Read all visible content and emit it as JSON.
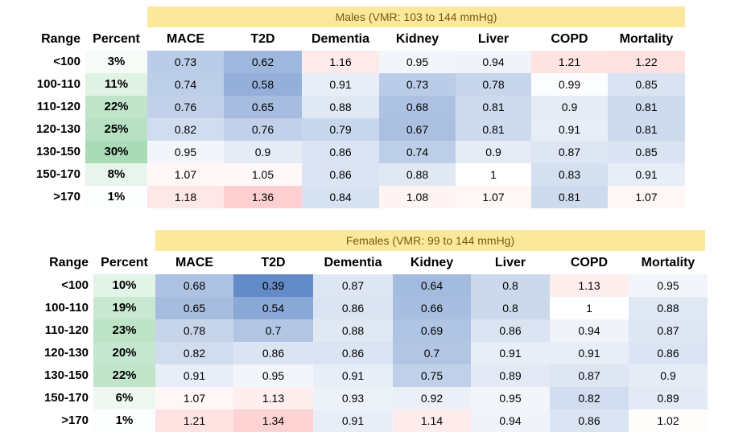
{
  "colors": {
    "banner": "#fbe89a",
    "banner_text": "#7a5a12",
    "low": "#5b85c5",
    "high": "#f8696b",
    "pct": "#63be7b"
  },
  "chart_data": [
    {
      "type": "heatmap",
      "title": "Males (VMR: 103 to 144 mmHg)",
      "range_header": "Range",
      "percent_header": "Percent",
      "columns": [
        "MACE",
        "T2D",
        "Dementia",
        "Kidney",
        "Liver",
        "COPD",
        "Mortality"
      ],
      "ranges": [
        "<100",
        "100-110",
        "110-120",
        "120-130",
        "130-150",
        "150-170",
        ">170"
      ],
      "percents": [
        "3%",
        "11%",
        "22%",
        "25%",
        "30%",
        "8%",
        "1%"
      ],
      "values": [
        [
          0.73,
          0.62,
          1.16,
          0.95,
          0.94,
          1.21,
          1.22
        ],
        [
          0.74,
          0.58,
          0.91,
          0.73,
          0.78,
          0.99,
          0.85
        ],
        [
          0.76,
          0.65,
          0.88,
          0.68,
          0.81,
          0.9,
          0.81
        ],
        [
          0.82,
          0.76,
          0.79,
          0.67,
          0.81,
          0.91,
          0.81
        ],
        [
          0.95,
          0.9,
          0.86,
          0.74,
          0.9,
          0.87,
          0.85
        ],
        [
          1.07,
          1.05,
          0.86,
          0.88,
          1,
          0.83,
          0.91
        ],
        [
          1.18,
          1.36,
          0.84,
          1.08,
          1.07,
          0.81,
          1.07
        ]
      ]
    },
    {
      "type": "heatmap",
      "title": "Females (VMR: 99 to 144 mmHg)",
      "range_header": "Range",
      "percent_header": "Percent",
      "columns": [
        "MACE",
        "T2D",
        "Dementia",
        "Kidney",
        "Liver",
        "COPD",
        "Mortality"
      ],
      "ranges": [
        "<100",
        "100-110",
        "110-120",
        "120-130",
        "130-150",
        "150-170",
        ">170"
      ],
      "percents": [
        "10%",
        "19%",
        "23%",
        "20%",
        "22%",
        "6%",
        "1%"
      ],
      "values": [
        [
          0.68,
          0.39,
          0.87,
          0.64,
          0.8,
          1.13,
          0.95
        ],
        [
          0.65,
          0.54,
          0.86,
          0.66,
          0.8,
          1,
          0.88
        ],
        [
          0.78,
          0.7,
          0.88,
          0.69,
          0.86,
          0.94,
          0.87
        ],
        [
          0.82,
          0.86,
          0.86,
          0.7,
          0.91,
          0.91,
          0.86
        ],
        [
          0.91,
          0.95,
          0.91,
          0.75,
          0.89,
          0.87,
          0.9
        ],
        [
          1.07,
          1.13,
          0.93,
          0.92,
          0.95,
          0.82,
          0.89
        ],
        [
          1.21,
          1.34,
          0.91,
          1.14,
          0.94,
          0.86,
          1.02
        ]
      ]
    }
  ]
}
